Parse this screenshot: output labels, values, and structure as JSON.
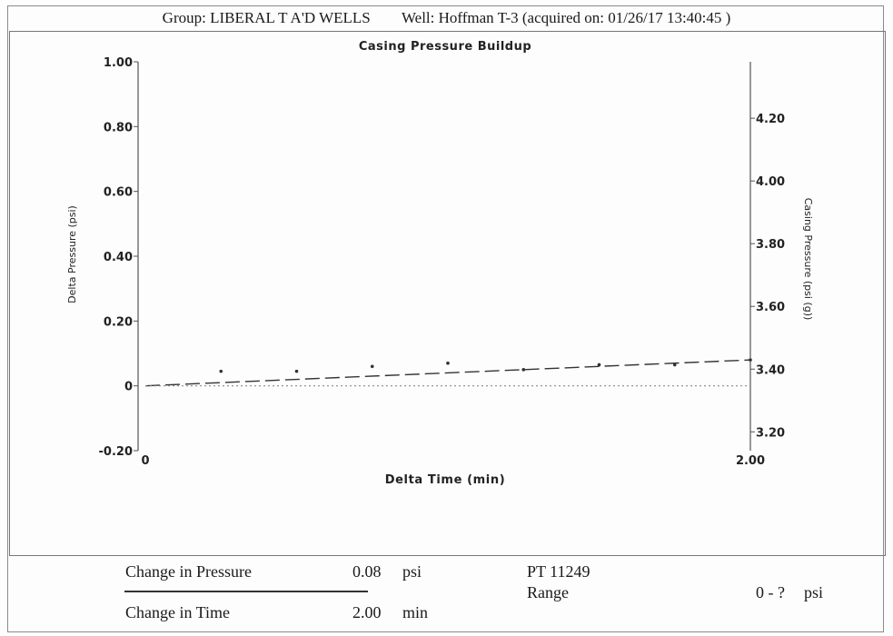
{
  "header": {
    "group": "Group: LIBERAL T A'D WELLS",
    "well": "Well: Hoffman T-3 (acquired on: 01/26/17 13:40:45 )"
  },
  "chart_data": {
    "type": "scatter",
    "title": "Casing Pressure Buildup",
    "xlabel": "Delta Time (min)",
    "ylabel_left": "Delta Pressure (psi)",
    "ylabel_right": "Casing Pressure (psi (g))",
    "xlim": [
      0,
      2.0
    ],
    "ylim_left": [
      -0.2,
      1.0
    ],
    "ylim_right": [
      3.14,
      4.38
    ],
    "x_ticks": [
      "0",
      "2.00"
    ],
    "y_ticks_left": [
      "-0.20",
      "0",
      "0.20",
      "0.40",
      "0.60",
      "0.80",
      "1.00"
    ],
    "y_ticks_right": [
      "3.20",
      "3.40",
      "3.60",
      "3.80",
      "4.00",
      "4.20"
    ],
    "grid": false,
    "series": [
      {
        "kind": "points",
        "x": [
          0.25,
          0.5,
          0.75,
          1.0,
          1.25,
          1.5,
          1.75,
          2.0
        ],
        "y": [
          0.045,
          0.045,
          0.06,
          0.07,
          0.05,
          0.065,
          0.065,
          0.08
        ]
      },
      {
        "kind": "trend-line-dashed",
        "x": [
          0,
          2.0
        ],
        "y": [
          0.0,
          0.08
        ]
      },
      {
        "kind": "baseline-dotted",
        "x": [
          0,
          2.0
        ],
        "y": [
          0.0,
          0.0
        ]
      }
    ],
    "colors": {
      "axis": "#555555",
      "marks": "#333333",
      "baseline": "#888888"
    }
  },
  "footer": {
    "change_pressure_label": "Change in Pressure",
    "change_pressure_value": "0.08",
    "change_pressure_unit": "psi",
    "change_time_label": "Change in Time",
    "change_time_value": "2.00",
    "change_time_unit": "min",
    "pt_label": "PT 11249",
    "range_label": "Range",
    "range_value": "0 - ?",
    "range_unit": "psi"
  }
}
